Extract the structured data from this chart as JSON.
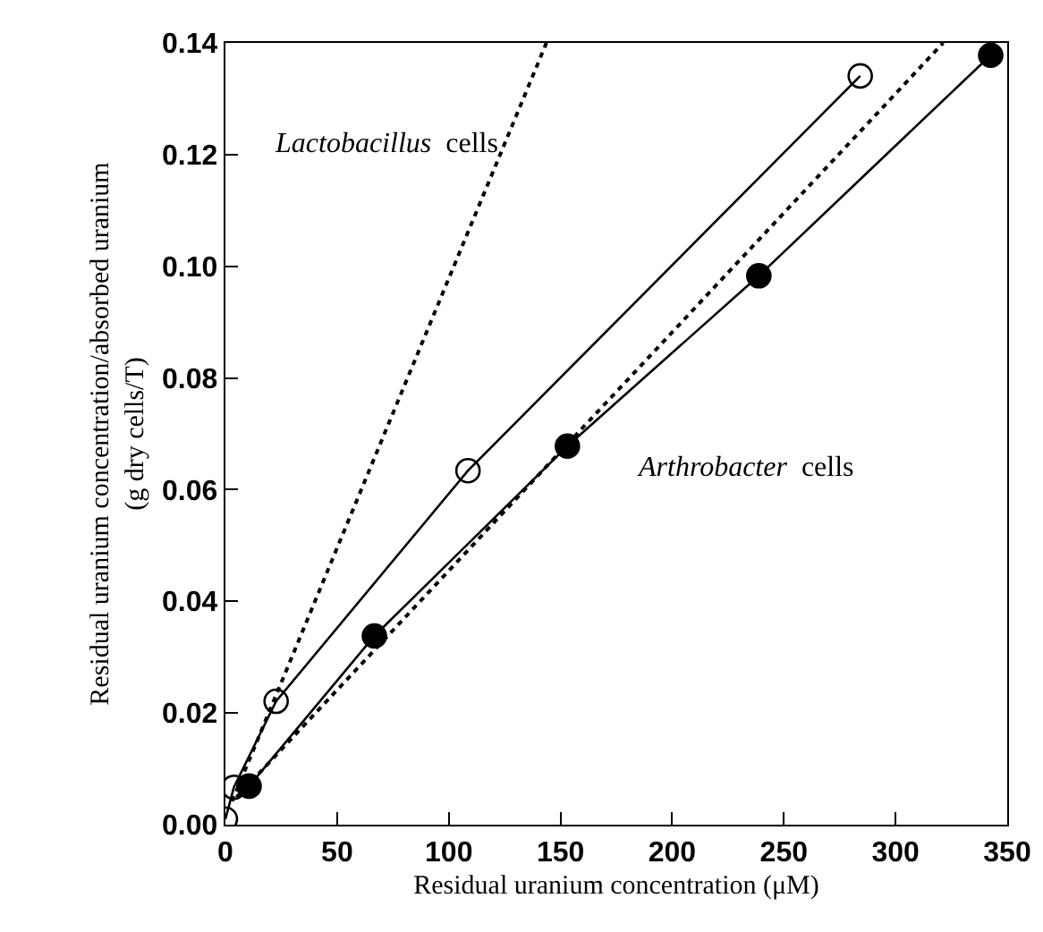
{
  "chart_data": {
    "type": "line",
    "xlabel": "Residual uranium concentration (μM)",
    "ylabel": "Residual uranium concentration/absorbed uranium\n(g dry cells/T)",
    "xlim": [
      0,
      350
    ],
    "xticks": [
      0,
      50,
      100,
      150,
      200,
      250,
      300,
      350
    ],
    "ylim": [
      0,
      0.14
    ],
    "yticks": [
      {
        "value": 0,
        "label": "0.00"
      },
      {
        "value": 0.02,
        "label": "0.02"
      },
      {
        "value": 0.04,
        "label": "0.04"
      },
      {
        "value": 0.06,
        "label": "0.06"
      },
      {
        "value": 0.08,
        "label": "0.08"
      },
      {
        "value": 0.1,
        "label": "0.10"
      },
      {
        "value": 0.12,
        "label": "0.12"
      },
      {
        "value": 0.14,
        "label": "0.14"
      }
    ],
    "grid": false,
    "marker": "circle",
    "line_style": "solid",
    "series": [
      {
        "color": "#000000",
        "x": [
          0,
          3.8,
          22.7,
          108.6,
          284.2
        ],
        "values": [
          0.001,
          0.0067,
          0.0221,
          0.0634,
          0.1341
        ]
      },
      {
        "color": "#000000",
        "x": [
          10.6,
          66.7,
          153.1,
          238.8,
          342.6
        ],
        "values": [
          0.0069,
          0.0338,
          0.0678,
          0.0983,
          0.1378
        ]
      },
      {
        "color": "#000000",
        "marker": "none",
        "line_style": "dotted",
        "x": [
          3,
          143.7
        ],
        "values": [
          0.0042,
          0.14
        ]
      },
      {
        "color": "#000000",
        "marker": "none",
        "line_style": "dotted",
        "x": [
          5,
          321.3
        ],
        "values": [
          0.0049,
          0.14
        ]
      }
    ],
    "annotations": [
      "Lactobacillus cells",
      "Arthrobacter cells"
    ]
  }
}
